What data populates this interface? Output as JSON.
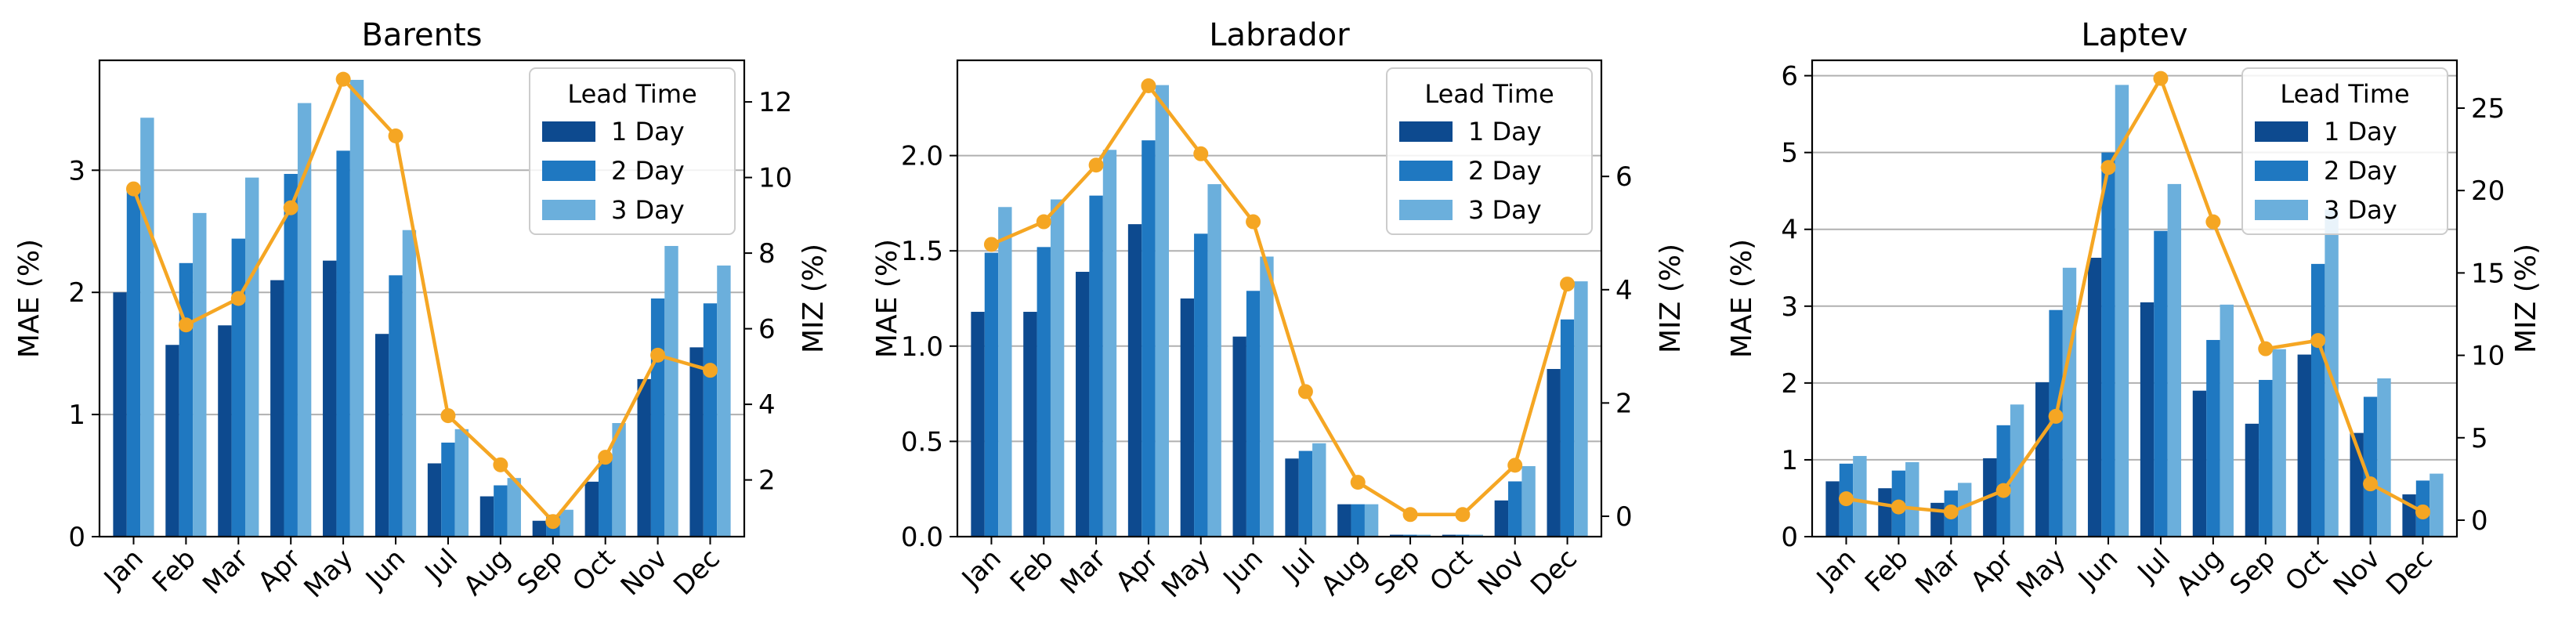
{
  "colors": {
    "day1": "#0d4a8f",
    "day2": "#1f78c1",
    "day3": "#6bafdc",
    "miz": "#f5a623",
    "grid": "#b0b0b0"
  },
  "chart_data": [
    {
      "type": "bar",
      "title": "Barents",
      "xlabel": "",
      "ylabel": "MAE (%)",
      "y2label": "MIZ (%)",
      "categories": [
        "Jan",
        "Feb",
        "Mar",
        "Apr",
        "May",
        "Jun",
        "Jul",
        "Aug",
        "Sep",
        "Oct",
        "Nov",
        "Dec"
      ],
      "ylim": [
        0,
        3.9
      ],
      "yticks": [
        0,
        1,
        2,
        3
      ],
      "y2lim": [
        0.5,
        13.1
      ],
      "y2ticks": [
        2,
        4,
        6,
        8,
        10,
        12
      ],
      "legend_title": "Lead Time",
      "series": [
        {
          "name": "1 Day",
          "values": [
            2.0,
            1.57,
            1.73,
            2.1,
            2.26,
            1.66,
            0.6,
            0.33,
            0.13,
            0.45,
            1.29,
            1.55
          ]
        },
        {
          "name": "2 Day",
          "values": [
            2.85,
            2.24,
            2.44,
            2.97,
            3.16,
            2.14,
            0.77,
            0.42,
            0.18,
            0.66,
            1.95,
            1.91
          ]
        },
        {
          "name": "3 Day",
          "values": [
            3.43,
            2.65,
            2.94,
            3.55,
            3.74,
            2.51,
            0.88,
            0.48,
            0.22,
            0.93,
            2.38,
            2.22
          ]
        }
      ],
      "line": {
        "name": "MIZ",
        "values": [
          9.7,
          6.1,
          6.8,
          9.2,
          12.6,
          11.1,
          3.7,
          2.4,
          0.9,
          2.6,
          5.3,
          4.9
        ]
      }
    },
    {
      "type": "bar",
      "title": "Labrador",
      "xlabel": "",
      "ylabel": "MAE (%)",
      "y2label": "MIZ (%)",
      "categories": [
        "Jan",
        "Feb",
        "Mar",
        "Apr",
        "May",
        "Jun",
        "Jul",
        "Aug",
        "Sep",
        "Oct",
        "Nov",
        "Dec"
      ],
      "ylim": [
        0,
        2.5
      ],
      "yticks": [
        0.0,
        0.5,
        1.0,
        1.5,
        2.0
      ],
      "y2lim": [
        -0.36,
        8.05
      ],
      "y2ticks": [
        0,
        2,
        4,
        6
      ],
      "legend_title": "Lead Time",
      "series": [
        {
          "name": "1 Day",
          "values": [
            1.18,
            1.18,
            1.39,
            1.64,
            1.25,
            1.05,
            0.41,
            0.17,
            0.01,
            0.01,
            0.19,
            0.88
          ]
        },
        {
          "name": "2 Day",
          "values": [
            1.49,
            1.52,
            1.79,
            2.08,
            1.59,
            1.29,
            0.45,
            0.17,
            0.01,
            0.01,
            0.29,
            1.14
          ]
        },
        {
          "name": "3 Day",
          "values": [
            1.73,
            1.77,
            2.03,
            2.37,
            1.85,
            1.47,
            0.49,
            0.17,
            0.01,
            0.01,
            0.37,
            1.34
          ]
        }
      ],
      "line": {
        "name": "MIZ",
        "values": [
          4.8,
          5.2,
          6.2,
          7.6,
          6.4,
          5.2,
          2.2,
          0.6,
          0.03,
          0.03,
          0.9,
          4.1
        ]
      }
    },
    {
      "type": "bar",
      "title": "Laptev",
      "xlabel": "",
      "ylabel": "MAE (%)",
      "y2label": "MIZ (%)",
      "categories": [
        "Jan",
        "Feb",
        "Mar",
        "Apr",
        "May",
        "Jun",
        "Jul",
        "Aug",
        "Sep",
        "Oct",
        "Nov",
        "Dec"
      ],
      "ylim": [
        0,
        6.2
      ],
      "yticks": [
        0,
        1,
        2,
        3,
        4,
        5,
        6
      ],
      "y2lim": [
        -1.0,
        27.9
      ],
      "y2ticks": [
        0,
        5,
        10,
        15,
        20,
        25
      ],
      "legend_title": "Lead Time",
      "series": [
        {
          "name": "1 Day",
          "values": [
            0.72,
            0.63,
            0.44,
            1.02,
            2.01,
            3.63,
            3.05,
            1.9,
            1.47,
            2.37,
            1.35,
            0.55
          ]
        },
        {
          "name": "2 Day",
          "values": [
            0.95,
            0.86,
            0.6,
            1.45,
            2.95,
            5.0,
            3.98,
            2.56,
            2.04,
            3.55,
            1.82,
            0.73
          ]
        },
        {
          "name": "3 Day",
          "values": [
            1.05,
            0.97,
            0.7,
            1.72,
            3.5,
            5.88,
            4.59,
            3.02,
            2.44,
            4.26,
            2.06,
            0.82
          ]
        }
      ],
      "line": {
        "name": "MIZ",
        "values": [
          1.3,
          0.8,
          0.5,
          1.8,
          6.3,
          21.4,
          26.8,
          18.1,
          10.4,
          10.9,
          2.2,
          0.5
        ]
      }
    }
  ]
}
